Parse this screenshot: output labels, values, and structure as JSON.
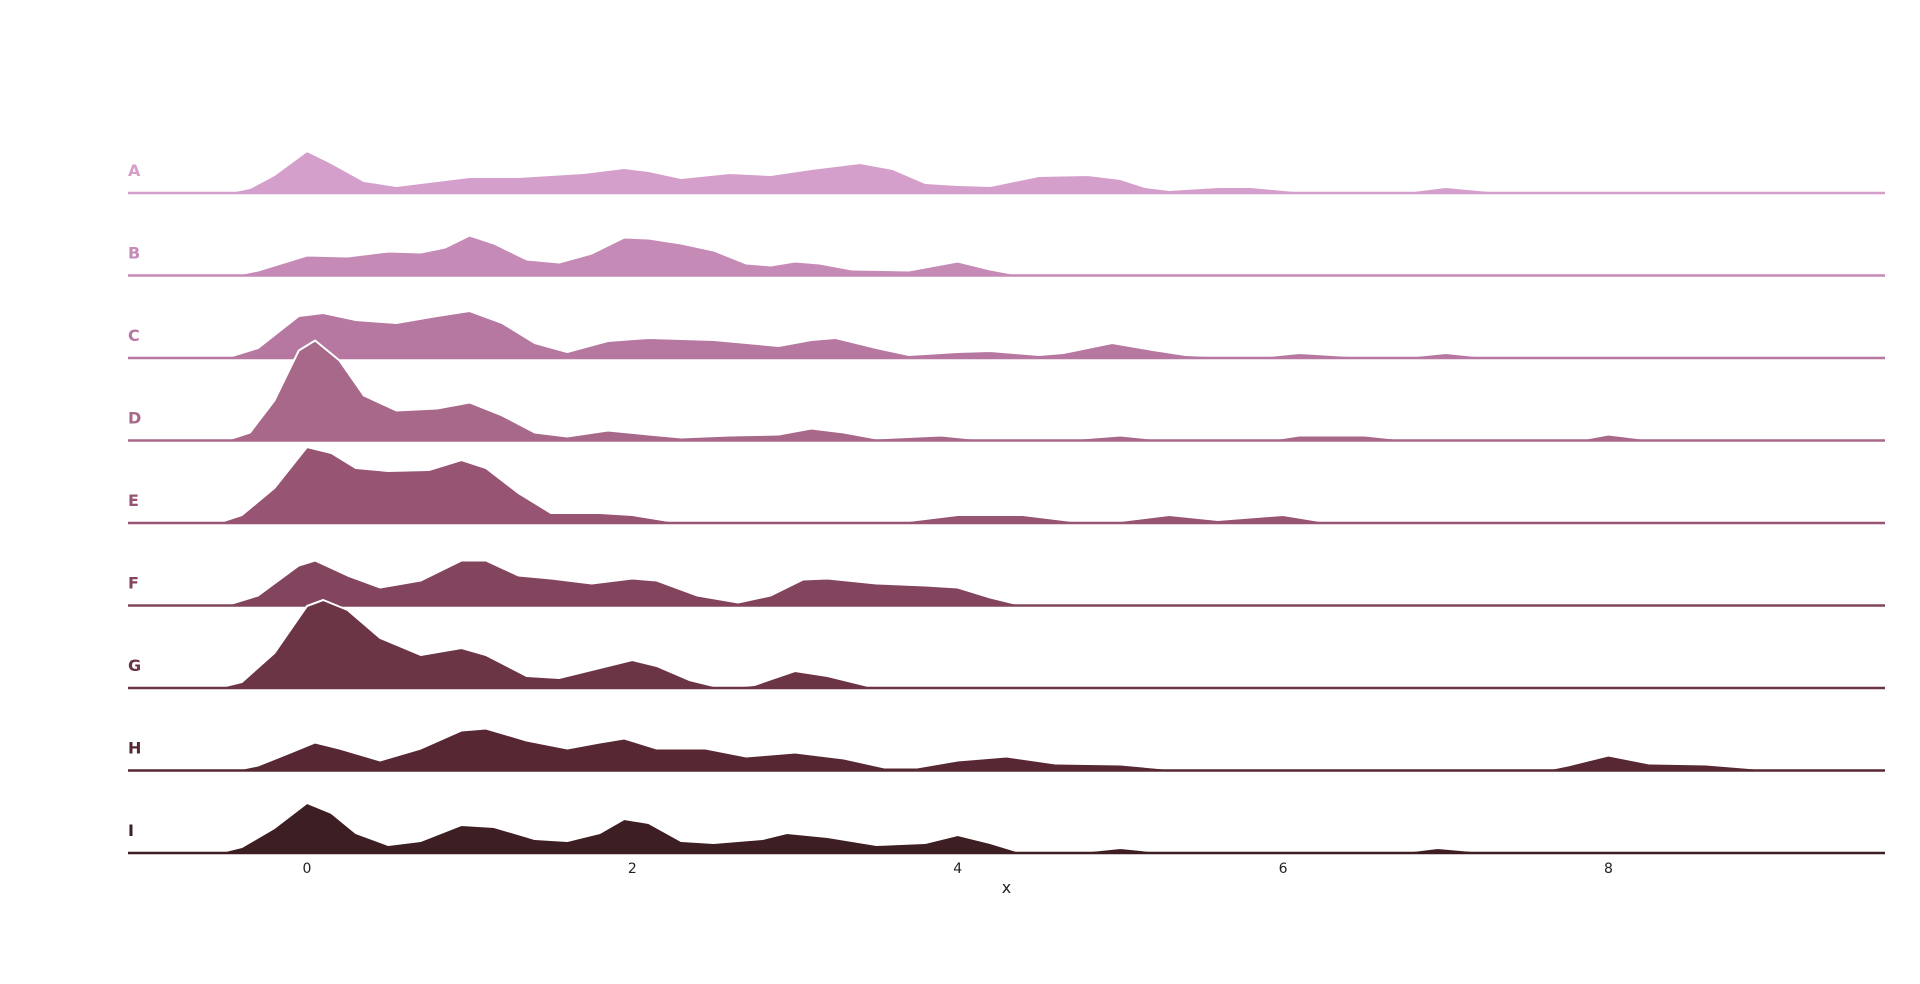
{
  "chart_data": {
    "type": "ridgeline",
    "title": "",
    "xlabel": "x",
    "ylabel": "",
    "xlim": [
      -1.1,
      9.7
    ],
    "xticks": [
      0,
      2,
      4,
      6,
      8
    ],
    "grid": false,
    "legend": "none",
    "series": [
      {
        "name": "A",
        "color": "#d59fcb",
        "points": [
          [
            -1.1,
            0
          ],
          [
            -0.5,
            0
          ],
          [
            -0.35,
            0.05
          ],
          [
            -0.2,
            0.18
          ],
          [
            0,
            0.42
          ],
          [
            0.15,
            0.3
          ],
          [
            0.35,
            0.12
          ],
          [
            0.55,
            0.07
          ],
          [
            0.8,
            0.12
          ],
          [
            1.0,
            0.16
          ],
          [
            1.3,
            0.16
          ],
          [
            1.7,
            0.2
          ],
          [
            1.95,
            0.25
          ],
          [
            2.1,
            0.22
          ],
          [
            2.3,
            0.15
          ],
          [
            2.6,
            0.2
          ],
          [
            2.85,
            0.18
          ],
          [
            3.1,
            0.24
          ],
          [
            3.4,
            0.3
          ],
          [
            3.6,
            0.24
          ],
          [
            3.8,
            0.1
          ],
          [
            4.0,
            0.08
          ],
          [
            4.2,
            0.07
          ],
          [
            4.5,
            0.17
          ],
          [
            4.8,
            0.18
          ],
          [
            5.0,
            0.14
          ],
          [
            5.15,
            0.06
          ],
          [
            5.3,
            0.03
          ],
          [
            5.6,
            0.06
          ],
          [
            5.8,
            0.06
          ],
          [
            6.2,
            0
          ],
          [
            6.7,
            0
          ],
          [
            7.0,
            0.06
          ],
          [
            7.4,
            0
          ],
          [
            9.7,
            0
          ]
        ]
      },
      {
        "name": "B",
        "color": "#c58ab6",
        "points": [
          [
            -1.1,
            0
          ],
          [
            -0.45,
            0
          ],
          [
            -0.3,
            0.05
          ],
          [
            0,
            0.2
          ],
          [
            0.25,
            0.19
          ],
          [
            0.5,
            0.24
          ],
          [
            0.7,
            0.23
          ],
          [
            0.85,
            0.28
          ],
          [
            1.0,
            0.4
          ],
          [
            1.15,
            0.32
          ],
          [
            1.35,
            0.16
          ],
          [
            1.55,
            0.13
          ],
          [
            1.75,
            0.22
          ],
          [
            1.95,
            0.38
          ],
          [
            2.1,
            0.37
          ],
          [
            2.3,
            0.32
          ],
          [
            2.5,
            0.25
          ],
          [
            2.7,
            0.12
          ],
          [
            2.85,
            0.1
          ],
          [
            3.0,
            0.14
          ],
          [
            3.15,
            0.12
          ],
          [
            3.35,
            0.06
          ],
          [
            3.7,
            0.05
          ],
          [
            4.0,
            0.14
          ],
          [
            4.2,
            0.06
          ],
          [
            4.4,
            0
          ],
          [
            9.7,
            0
          ]
        ]
      },
      {
        "name": "C",
        "color": "#b677a0",
        "points": [
          [
            -1.1,
            0
          ],
          [
            -0.5,
            0
          ],
          [
            -0.3,
            0.1
          ],
          [
            -0.05,
            0.42
          ],
          [
            0.1,
            0.45
          ],
          [
            0.3,
            0.38
          ],
          [
            0.55,
            0.35
          ],
          [
            0.8,
            0.42
          ],
          [
            1.0,
            0.47
          ],
          [
            1.2,
            0.35
          ],
          [
            1.4,
            0.15
          ],
          [
            1.6,
            0.06
          ],
          [
            1.85,
            0.17
          ],
          [
            2.1,
            0.2
          ],
          [
            2.5,
            0.18
          ],
          [
            2.9,
            0.12
          ],
          [
            3.1,
            0.18
          ],
          [
            3.25,
            0.2
          ],
          [
            3.5,
            0.1
          ],
          [
            3.7,
            0.03
          ],
          [
            4.0,
            0.06
          ],
          [
            4.2,
            0.07
          ],
          [
            4.5,
            0.03
          ],
          [
            4.65,
            0.05
          ],
          [
            4.95,
            0.15
          ],
          [
            5.2,
            0.08
          ],
          [
            5.4,
            0.03
          ],
          [
            5.8,
            0
          ],
          [
            6.1,
            0.05
          ],
          [
            6.4,
            0.02
          ],
          [
            6.7,
            0
          ],
          [
            7.0,
            0.05
          ],
          [
            7.3,
            0
          ],
          [
            9.7,
            0
          ]
        ]
      },
      {
        "name": "D",
        "color": "#a76889",
        "points": [
          [
            -1.1,
            0
          ],
          [
            -0.5,
            0
          ],
          [
            -0.35,
            0.08
          ],
          [
            -0.2,
            0.4
          ],
          [
            -0.05,
            0.9
          ],
          [
            0.05,
            1.0
          ],
          [
            0.2,
            0.8
          ],
          [
            0.35,
            0.45
          ],
          [
            0.55,
            0.3
          ],
          [
            0.8,
            0.32
          ],
          [
            1.0,
            0.38
          ],
          [
            1.2,
            0.25
          ],
          [
            1.4,
            0.08
          ],
          [
            1.6,
            0.04
          ],
          [
            1.85,
            0.1
          ],
          [
            2.1,
            0.06
          ],
          [
            2.3,
            0.03
          ],
          [
            2.6,
            0.05
          ],
          [
            2.9,
            0.06
          ],
          [
            3.1,
            0.12
          ],
          [
            3.3,
            0.08
          ],
          [
            3.5,
            0.02
          ],
          [
            3.9,
            0.05
          ],
          [
            4.2,
            0
          ],
          [
            4.6,
            0
          ],
          [
            5.0,
            0.05
          ],
          [
            5.3,
            0
          ],
          [
            5.9,
            0
          ],
          [
            6.1,
            0.05
          ],
          [
            6.5,
            0.05
          ],
          [
            6.8,
            0
          ],
          [
            7.8,
            0
          ],
          [
            8.0,
            0.06
          ],
          [
            8.3,
            0
          ],
          [
            9.7,
            0
          ]
        ]
      },
      {
        "name": "E",
        "color": "#975473",
        "points": [
          [
            -1.1,
            0
          ],
          [
            -0.55,
            0
          ],
          [
            -0.4,
            0.08
          ],
          [
            -0.2,
            0.35
          ],
          [
            0,
            0.76
          ],
          [
            0.15,
            0.7
          ],
          [
            0.3,
            0.55
          ],
          [
            0.5,
            0.52
          ],
          [
            0.75,
            0.53
          ],
          [
            0.95,
            0.63
          ],
          [
            1.1,
            0.55
          ],
          [
            1.3,
            0.3
          ],
          [
            1.5,
            0.1
          ],
          [
            1.8,
            0.1
          ],
          [
            2.0,
            0.08
          ],
          [
            2.3,
            0
          ],
          [
            3.6,
            0
          ],
          [
            4.0,
            0.08
          ],
          [
            4.4,
            0.08
          ],
          [
            4.7,
            0.02
          ],
          [
            4.9,
            0
          ],
          [
            5.3,
            0.08
          ],
          [
            5.6,
            0.03
          ],
          [
            6.0,
            0.08
          ],
          [
            6.3,
            0
          ],
          [
            9.7,
            0
          ]
        ]
      },
      {
        "name": "F",
        "color": "#82455d",
        "points": [
          [
            -1.1,
            0
          ],
          [
            -0.5,
            0
          ],
          [
            -0.3,
            0.1
          ],
          [
            -0.05,
            0.4
          ],
          [
            0.05,
            0.45
          ],
          [
            0.25,
            0.3
          ],
          [
            0.45,
            0.18
          ],
          [
            0.7,
            0.25
          ],
          [
            0.95,
            0.45
          ],
          [
            1.1,
            0.45
          ],
          [
            1.3,
            0.3
          ],
          [
            1.5,
            0.27
          ],
          [
            1.75,
            0.22
          ],
          [
            2.0,
            0.27
          ],
          [
            2.15,
            0.25
          ],
          [
            2.4,
            0.1
          ],
          [
            2.65,
            0.03
          ],
          [
            2.85,
            0.1
          ],
          [
            3.05,
            0.26
          ],
          [
            3.2,
            0.27
          ],
          [
            3.5,
            0.22
          ],
          [
            3.8,
            0.2
          ],
          [
            4.0,
            0.18
          ],
          [
            4.2,
            0.08
          ],
          [
            4.4,
            0
          ],
          [
            9.7,
            0
          ]
        ]
      },
      {
        "name": "G",
        "color": "#6c3545",
        "points": [
          [
            -1.1,
            0
          ],
          [
            -0.55,
            0
          ],
          [
            -0.4,
            0.06
          ],
          [
            -0.2,
            0.35
          ],
          [
            0,
            0.82
          ],
          [
            0.1,
            0.88
          ],
          [
            0.25,
            0.78
          ],
          [
            0.45,
            0.5
          ],
          [
            0.7,
            0.33
          ],
          [
            0.95,
            0.4
          ],
          [
            1.1,
            0.33
          ],
          [
            1.35,
            0.12
          ],
          [
            1.55,
            0.1
          ],
          [
            1.8,
            0.2
          ],
          [
            2.0,
            0.28
          ],
          [
            2.15,
            0.22
          ],
          [
            2.35,
            0.08
          ],
          [
            2.55,
            0
          ],
          [
            2.75,
            0.03
          ],
          [
            3.0,
            0.17
          ],
          [
            3.2,
            0.12
          ],
          [
            3.45,
            0.02
          ],
          [
            3.5,
            0
          ],
          [
            9.7,
            0
          ]
        ]
      },
      {
        "name": "H",
        "color": "#572833",
        "points": [
          [
            -1.1,
            0
          ],
          [
            -0.45,
            0
          ],
          [
            -0.3,
            0.05
          ],
          [
            -0.1,
            0.18
          ],
          [
            0.05,
            0.28
          ],
          [
            0.2,
            0.22
          ],
          [
            0.45,
            0.1
          ],
          [
            0.7,
            0.22
          ],
          [
            0.95,
            0.4
          ],
          [
            1.1,
            0.42
          ],
          [
            1.35,
            0.3
          ],
          [
            1.6,
            0.22
          ],
          [
            1.8,
            0.28
          ],
          [
            1.95,
            0.32
          ],
          [
            2.15,
            0.22
          ],
          [
            2.45,
            0.22
          ],
          [
            2.7,
            0.14
          ],
          [
            3.0,
            0.18
          ],
          [
            3.3,
            0.12
          ],
          [
            3.55,
            0.03
          ],
          [
            3.75,
            0.03
          ],
          [
            4.0,
            0.1
          ],
          [
            4.3,
            0.14
          ],
          [
            4.6,
            0.07
          ],
          [
            5.0,
            0.06
          ],
          [
            5.4,
            0
          ],
          [
            7.6,
            0
          ],
          [
            7.75,
            0.05
          ],
          [
            8.0,
            0.15
          ],
          [
            8.25,
            0.07
          ],
          [
            8.6,
            0.06
          ],
          [
            8.9,
            0.02
          ],
          [
            9.1,
            0
          ],
          [
            9.7,
            0
          ]
        ]
      },
      {
        "name": "I",
        "color": "#3d1e22",
        "points": [
          [
            -1.1,
            0
          ],
          [
            -0.55,
            0
          ],
          [
            -0.4,
            0.06
          ],
          [
            -0.2,
            0.25
          ],
          [
            0,
            0.5
          ],
          [
            0.15,
            0.4
          ],
          [
            0.3,
            0.2
          ],
          [
            0.5,
            0.08
          ],
          [
            0.7,
            0.12
          ],
          [
            0.95,
            0.28
          ],
          [
            1.15,
            0.26
          ],
          [
            1.4,
            0.14
          ],
          [
            1.6,
            0.12
          ],
          [
            1.8,
            0.2
          ],
          [
            1.95,
            0.34
          ],
          [
            2.1,
            0.3
          ],
          [
            2.3,
            0.12
          ],
          [
            2.5,
            0.1
          ],
          [
            2.8,
            0.14
          ],
          [
            2.95,
            0.2
          ],
          [
            3.2,
            0.16
          ],
          [
            3.5,
            0.08
          ],
          [
            3.8,
            0.1
          ],
          [
            4.0,
            0.18
          ],
          [
            4.2,
            0.1
          ],
          [
            4.4,
            0
          ],
          [
            4.7,
            0
          ],
          [
            5.0,
            0.05
          ],
          [
            5.3,
            0
          ],
          [
            6.7,
            0
          ],
          [
            6.95,
            0.05
          ],
          [
            7.3,
            0
          ],
          [
            9.7,
            0
          ]
        ]
      }
    ]
  }
}
